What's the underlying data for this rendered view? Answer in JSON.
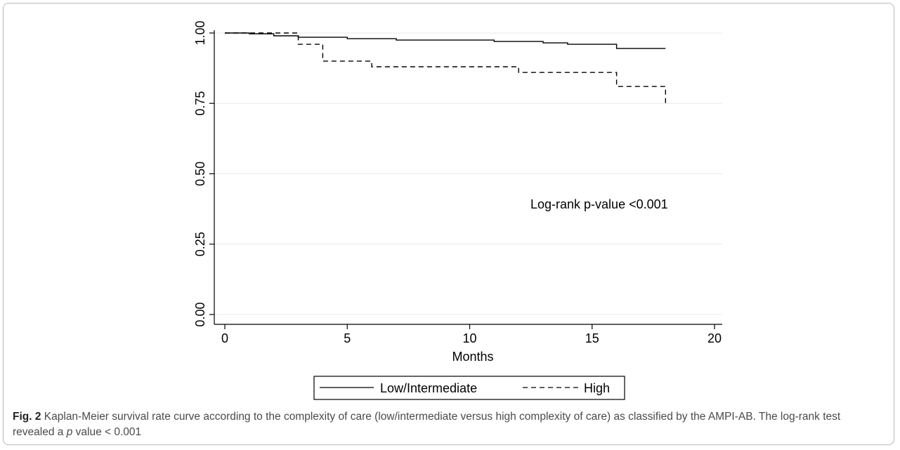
{
  "chart_data": {
    "type": "line",
    "step": true,
    "xlabel": "Months",
    "ylabel": "",
    "xlim": [
      0,
      20
    ],
    "ylim": [
      0,
      1
    ],
    "xticks": [
      "0",
      "5",
      "10",
      "15",
      "20"
    ],
    "yticks": [
      "0.00",
      "0.25",
      "0.50",
      "0.75",
      "1.00"
    ],
    "grid": "horizontal",
    "legend_placement": "bottom",
    "annotation": "Log-rank p-value <0.001",
    "series": [
      {
        "name": "Low/Intermediate",
        "style": "solid",
        "x": [
          0,
          1,
          2,
          3,
          5,
          7,
          11,
          13,
          14,
          16,
          18
        ],
        "y": [
          1.0,
          0.997,
          0.99,
          0.985,
          0.98,
          0.975,
          0.97,
          0.965,
          0.96,
          0.945,
          0.945
        ]
      },
      {
        "name": "High",
        "style": "dashed",
        "x": [
          0,
          3,
          4,
          6,
          12,
          16,
          18,
          18
        ],
        "y": [
          1.0,
          0.96,
          0.9,
          0.88,
          0.86,
          0.81,
          0.81,
          0.74
        ]
      }
    ]
  },
  "caption": {
    "label": "Fig. 2",
    "text_1": " Kaplan-Meier survival rate curve according to the complexity of care (low/intermediate versus high complexity of care) as classified by the AMPI-AB. The log-rank test revealed a ",
    "p": "p",
    "text_2": " value < 0.001"
  },
  "colors": {
    "line": "#000000",
    "grid": "#e8e8e8",
    "caption": "#4a4a4a"
  }
}
